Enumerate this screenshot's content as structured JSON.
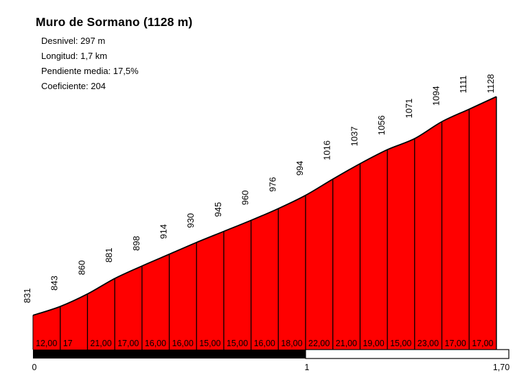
{
  "header": {
    "title": "Muro de Sormano (1128 m)",
    "stats": [
      "Desnivel: 297 m",
      "Longitud: 1,7 km",
      "Pendiente media: 17,5%",
      "Coeficiente: 204"
    ]
  },
  "chart_data": {
    "type": "area",
    "title": "Muro de Sormano (1128 m)",
    "x_km": [
      0,
      0.1,
      0.2,
      0.3,
      0.4,
      0.5,
      0.6,
      0.7,
      0.8,
      0.9,
      1.0,
      1.1,
      1.2,
      1.3,
      1.4,
      1.5,
      1.6,
      1.7
    ],
    "elevations_m": [
      831,
      843,
      860,
      881,
      898,
      914,
      930,
      945,
      960,
      976,
      994,
      1016,
      1037,
      1056,
      1071,
      1094,
      1111,
      1128
    ],
    "elevation_labels": [
      "831",
      "843",
      "860",
      "881",
      "898",
      "914",
      "930",
      "945",
      "960",
      "976",
      "994",
      "1016",
      "1037",
      "1056",
      "1071",
      "1094",
      "1111",
      "1128"
    ],
    "segment_gradient_pct": [
      12,
      17,
      21,
      17,
      16,
      16,
      15,
      15,
      16,
      18,
      22,
      21,
      19,
      15,
      23,
      17,
      17
    ],
    "segment_gradient_labels": [
      "12,00",
      "17",
      "21,00",
      "17,00",
      "16,00",
      "16,00",
      "15,00",
      "15,00",
      "16,00",
      "18,00",
      "22,00",
      "21,00",
      "19,00",
      "15,00",
      "23,00",
      "17,00",
      "17,00"
    ],
    "x_axis_ticks": [
      {
        "km": 0,
        "label": "0"
      },
      {
        "km": 1,
        "label": "1"
      },
      {
        "km": 1.7,
        "label": "1,70"
      }
    ],
    "xlim_km": [
      0,
      1.7
    ],
    "ylim_m": [
      831,
      1128
    ],
    "xlabel": "",
    "ylabel": "",
    "grid": false,
    "legend": "none",
    "fill_color": "#ff0000",
    "line_color": "#000000",
    "label_color": "#000000",
    "scalebar": {
      "dark_from_km": 0,
      "dark_to_km": 1,
      "light_from_km": 1,
      "light_to_km": 1.7
    }
  }
}
